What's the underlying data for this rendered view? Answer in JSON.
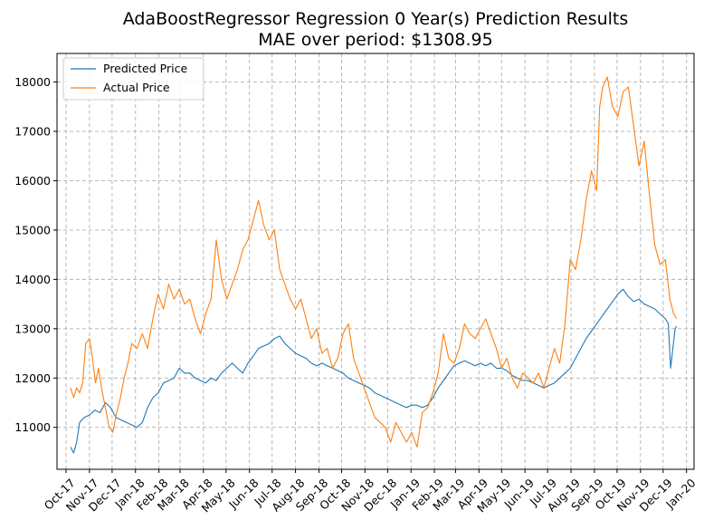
{
  "chart_data": {
    "type": "line",
    "title": "AdaBoostRegressor Regression 0 Year(s) Prediction Results",
    "subtitle": "MAE over period: $1308.95",
    "xlabel": "",
    "ylabel": "",
    "x_axis": "date",
    "xlim": [
      "2017-09-19",
      "2020-01-11"
    ],
    "ylim": [
      10150,
      18580
    ],
    "x_tick_labels": [
      "Oct-17",
      "Nov-17",
      "Dec-17",
      "Jan-18",
      "Feb-18",
      "Mar-18",
      "Apr-18",
      "May-18",
      "Jun-18",
      "Jul-18",
      "Aug-18",
      "Sep-18",
      "Oct-18",
      "Nov-18",
      "Dec-18",
      "Jan-19",
      "Feb-19",
      "Mar-19",
      "Apr-19",
      "May-19",
      "Jun-19",
      "Jul-19",
      "Aug-19",
      "Sep-19",
      "Oct-19",
      "Nov-19",
      "Dec-19",
      "Jan-20"
    ],
    "x_tick_dates": [
      "2017-10-01",
      "2017-11-01",
      "2017-12-01",
      "2018-01-01",
      "2018-02-01",
      "2018-03-01",
      "2018-04-01",
      "2018-05-01",
      "2018-06-01",
      "2018-07-01",
      "2018-08-01",
      "2018-09-01",
      "2018-10-01",
      "2018-11-01",
      "2018-12-01",
      "2019-01-01",
      "2019-02-01",
      "2019-03-01",
      "2019-04-01",
      "2019-05-01",
      "2019-06-01",
      "2019-07-01",
      "2019-08-01",
      "2019-09-01",
      "2019-10-01",
      "2019-11-01",
      "2019-12-01",
      "2020-01-01"
    ],
    "y_ticks": [
      11000,
      12000,
      13000,
      14000,
      15000,
      16000,
      17000,
      18000
    ],
    "grid": true,
    "legend_position": "top-left",
    "series": [
      {
        "name": "Predicted Price",
        "color": "#1f77b4",
        "points": [
          [
            "2017-10-07",
            10600
          ],
          [
            "2017-10-11",
            10480
          ],
          [
            "2017-10-15",
            10700
          ],
          [
            "2017-10-19",
            11100
          ],
          [
            "2017-10-25",
            11200
          ],
          [
            "2017-11-01",
            11250
          ],
          [
            "2017-11-08",
            11350
          ],
          [
            "2017-11-15",
            11300
          ],
          [
            "2017-11-22",
            11500
          ],
          [
            "2017-11-29",
            11400
          ],
          [
            "2017-12-06",
            11200
          ],
          [
            "2017-12-13",
            11150
          ],
          [
            "2017-12-20",
            11100
          ],
          [
            "2017-12-27",
            11050
          ],
          [
            "2018-01-03",
            11000
          ],
          [
            "2018-01-10",
            11100
          ],
          [
            "2018-01-17",
            11400
          ],
          [
            "2018-01-24",
            11600
          ],
          [
            "2018-01-31",
            11700
          ],
          [
            "2018-02-07",
            11900
          ],
          [
            "2018-02-14",
            11950
          ],
          [
            "2018-02-21",
            12000
          ],
          [
            "2018-02-28",
            12200
          ],
          [
            "2018-03-07",
            12100
          ],
          [
            "2018-03-14",
            12100
          ],
          [
            "2018-03-21",
            12000
          ],
          [
            "2018-03-28",
            11950
          ],
          [
            "2018-04-04",
            11900
          ],
          [
            "2018-04-11",
            12000
          ],
          [
            "2018-04-18",
            11950
          ],
          [
            "2018-04-25",
            12100
          ],
          [
            "2018-05-02",
            12200
          ],
          [
            "2018-05-09",
            12300
          ],
          [
            "2018-05-16",
            12200
          ],
          [
            "2018-05-23",
            12100
          ],
          [
            "2018-05-30",
            12300
          ],
          [
            "2018-06-06",
            12450
          ],
          [
            "2018-06-13",
            12600
          ],
          [
            "2018-06-20",
            12650
          ],
          [
            "2018-06-27",
            12700
          ],
          [
            "2018-07-04",
            12800
          ],
          [
            "2018-07-11",
            12850
          ],
          [
            "2018-07-18",
            12700
          ],
          [
            "2018-07-25",
            12600
          ],
          [
            "2018-08-01",
            12500
          ],
          [
            "2018-08-08",
            12450
          ],
          [
            "2018-08-15",
            12400
          ],
          [
            "2018-08-22",
            12300
          ],
          [
            "2018-08-29",
            12250
          ],
          [
            "2018-09-05",
            12300
          ],
          [
            "2018-09-12",
            12250
          ],
          [
            "2018-09-19",
            12200
          ],
          [
            "2018-09-26",
            12150
          ],
          [
            "2018-10-03",
            12100
          ],
          [
            "2018-10-10",
            12000
          ],
          [
            "2018-10-17",
            11950
          ],
          [
            "2018-10-24",
            11900
          ],
          [
            "2018-10-31",
            11850
          ],
          [
            "2018-11-07",
            11800
          ],
          [
            "2018-11-14",
            11700
          ],
          [
            "2018-11-21",
            11650
          ],
          [
            "2018-11-28",
            11600
          ],
          [
            "2018-12-05",
            11550
          ],
          [
            "2018-12-12",
            11500
          ],
          [
            "2018-12-19",
            11450
          ],
          [
            "2018-12-26",
            11400
          ],
          [
            "2019-01-02",
            11450
          ],
          [
            "2019-01-09",
            11450
          ],
          [
            "2019-01-16",
            11400
          ],
          [
            "2019-01-23",
            11450
          ],
          [
            "2019-01-30",
            11600
          ],
          [
            "2019-02-06",
            11800
          ],
          [
            "2019-02-13",
            11950
          ],
          [
            "2019-02-20",
            12100
          ],
          [
            "2019-02-27",
            12250
          ],
          [
            "2019-03-06",
            12300
          ],
          [
            "2019-03-13",
            12350
          ],
          [
            "2019-03-20",
            12300
          ],
          [
            "2019-03-27",
            12250
          ],
          [
            "2019-04-03",
            12300
          ],
          [
            "2019-04-10",
            12250
          ],
          [
            "2019-04-17",
            12300
          ],
          [
            "2019-04-24",
            12200
          ],
          [
            "2019-05-01",
            12200
          ],
          [
            "2019-05-08",
            12150
          ],
          [
            "2019-05-15",
            12050
          ],
          [
            "2019-05-22",
            12000
          ],
          [
            "2019-05-29",
            11950
          ],
          [
            "2019-06-05",
            11950
          ],
          [
            "2019-06-12",
            11900
          ],
          [
            "2019-06-19",
            11850
          ],
          [
            "2019-06-26",
            11800
          ],
          [
            "2019-07-03",
            11850
          ],
          [
            "2019-07-10",
            11900
          ],
          [
            "2019-07-17",
            12000
          ],
          [
            "2019-07-24",
            12100
          ],
          [
            "2019-07-31",
            12200
          ],
          [
            "2019-08-07",
            12400
          ],
          [
            "2019-08-14",
            12600
          ],
          [
            "2019-08-21",
            12800
          ],
          [
            "2019-08-28",
            12950
          ],
          [
            "2019-09-04",
            13100
          ],
          [
            "2019-09-11",
            13250
          ],
          [
            "2019-09-18",
            13400
          ],
          [
            "2019-09-25",
            13550
          ],
          [
            "2019-10-02",
            13700
          ],
          [
            "2019-10-09",
            13800
          ],
          [
            "2019-10-16",
            13650
          ],
          [
            "2019-10-23",
            13550
          ],
          [
            "2019-10-30",
            13600
          ],
          [
            "2019-11-06",
            13500
          ],
          [
            "2019-11-13",
            13450
          ],
          [
            "2019-11-20",
            13400
          ],
          [
            "2019-11-27",
            13300
          ],
          [
            "2019-12-04",
            13200
          ],
          [
            "2019-12-08",
            13100
          ],
          [
            "2019-12-11",
            12200
          ],
          [
            "2019-12-14",
            12600
          ],
          [
            "2019-12-17",
            13000
          ],
          [
            "2019-12-19",
            13050
          ]
        ]
      },
      {
        "name": "Actual Price",
        "color": "#ff7f0e",
        "points": [
          [
            "2017-10-07",
            11800
          ],
          [
            "2017-10-11",
            11600
          ],
          [
            "2017-10-15",
            11800
          ],
          [
            "2017-10-19",
            11700
          ],
          [
            "2017-10-23",
            11900
          ],
          [
            "2017-10-27",
            12700
          ],
          [
            "2017-11-01",
            12800
          ],
          [
            "2017-11-05",
            12400
          ],
          [
            "2017-11-09",
            11900
          ],
          [
            "2017-11-13",
            12200
          ],
          [
            "2017-11-17",
            11800
          ],
          [
            "2017-11-22",
            11400
          ],
          [
            "2017-11-27",
            11000
          ],
          [
            "2017-12-02",
            10900
          ],
          [
            "2017-12-07",
            11300
          ],
          [
            "2017-12-12",
            11600
          ],
          [
            "2017-12-17",
            12000
          ],
          [
            "2017-12-22",
            12300
          ],
          [
            "2017-12-27",
            12700
          ],
          [
            "2018-01-03",
            12600
          ],
          [
            "2018-01-10",
            12900
          ],
          [
            "2018-01-17",
            12600
          ],
          [
            "2018-01-24",
            13200
          ],
          [
            "2018-01-31",
            13700
          ],
          [
            "2018-02-07",
            13400
          ],
          [
            "2018-02-14",
            13900
          ],
          [
            "2018-02-21",
            13600
          ],
          [
            "2018-02-28",
            13800
          ],
          [
            "2018-03-07",
            13500
          ],
          [
            "2018-03-14",
            13600
          ],
          [
            "2018-03-21",
            13200
          ],
          [
            "2018-03-28",
            12900
          ],
          [
            "2018-04-04",
            13300
          ],
          [
            "2018-04-11",
            13600
          ],
          [
            "2018-04-18",
            14800
          ],
          [
            "2018-04-25",
            14000
          ],
          [
            "2018-05-02",
            13600
          ],
          [
            "2018-05-09",
            13900
          ],
          [
            "2018-05-16",
            14200
          ],
          [
            "2018-05-23",
            14600
          ],
          [
            "2018-05-30",
            14800
          ],
          [
            "2018-06-06",
            15200
          ],
          [
            "2018-06-13",
            15600
          ],
          [
            "2018-06-20",
            15100
          ],
          [
            "2018-06-27",
            14800
          ],
          [
            "2018-07-04",
            15000
          ],
          [
            "2018-07-11",
            14200
          ],
          [
            "2018-07-18",
            13900
          ],
          [
            "2018-07-25",
            13600
          ],
          [
            "2018-08-01",
            13400
          ],
          [
            "2018-08-08",
            13600
          ],
          [
            "2018-08-15",
            13200
          ],
          [
            "2018-08-22",
            12800
          ],
          [
            "2018-08-29",
            13000
          ],
          [
            "2018-09-05",
            12500
          ],
          [
            "2018-09-12",
            12600
          ],
          [
            "2018-09-19",
            12200
          ],
          [
            "2018-09-26",
            12400
          ],
          [
            "2018-10-03",
            12900
          ],
          [
            "2018-10-10",
            13100
          ],
          [
            "2018-10-17",
            12400
          ],
          [
            "2018-10-24",
            12100
          ],
          [
            "2018-10-31",
            11800
          ],
          [
            "2018-11-07",
            11500
          ],
          [
            "2018-11-14",
            11200
          ],
          [
            "2018-11-21",
            11100
          ],
          [
            "2018-11-28",
            11000
          ],
          [
            "2018-12-05",
            10700
          ],
          [
            "2018-12-12",
            11100
          ],
          [
            "2018-12-19",
            10900
          ],
          [
            "2018-12-26",
            10700
          ],
          [
            "2019-01-02",
            10900
          ],
          [
            "2019-01-09",
            10600
          ],
          [
            "2019-01-16",
            11300
          ],
          [
            "2019-01-23",
            11400
          ],
          [
            "2019-01-30",
            11700
          ],
          [
            "2019-02-06",
            12100
          ],
          [
            "2019-02-13",
            12900
          ],
          [
            "2019-02-20",
            12400
          ],
          [
            "2019-02-27",
            12300
          ],
          [
            "2019-03-06",
            12600
          ],
          [
            "2019-03-13",
            13100
          ],
          [
            "2019-03-20",
            12900
          ],
          [
            "2019-03-27",
            12800
          ],
          [
            "2019-04-03",
            13000
          ],
          [
            "2019-04-10",
            13200
          ],
          [
            "2019-04-17",
            12900
          ],
          [
            "2019-04-24",
            12600
          ],
          [
            "2019-05-01",
            12200
          ],
          [
            "2019-05-08",
            12400
          ],
          [
            "2019-05-15",
            12000
          ],
          [
            "2019-05-22",
            11800
          ],
          [
            "2019-05-29",
            12100
          ],
          [
            "2019-06-05",
            12000
          ],
          [
            "2019-06-12",
            11900
          ],
          [
            "2019-06-19",
            12100
          ],
          [
            "2019-06-26",
            11800
          ],
          [
            "2019-07-03",
            12200
          ],
          [
            "2019-07-10",
            12600
          ],
          [
            "2019-07-17",
            12300
          ],
          [
            "2019-07-24",
            13100
          ],
          [
            "2019-07-31",
            14400
          ],
          [
            "2019-08-07",
            14200
          ],
          [
            "2019-08-14",
            14800
          ],
          [
            "2019-08-21",
            15600
          ],
          [
            "2019-08-28",
            16200
          ],
          [
            "2019-09-04",
            15800
          ],
          [
            "2019-09-08",
            17500
          ],
          [
            "2019-09-12",
            17900
          ],
          [
            "2019-09-18",
            18100
          ],
          [
            "2019-09-25",
            17500
          ],
          [
            "2019-10-02",
            17300
          ],
          [
            "2019-10-09",
            17800
          ],
          [
            "2019-10-16",
            17900
          ],
          [
            "2019-10-23",
            17100
          ],
          [
            "2019-10-30",
            16300
          ],
          [
            "2019-11-06",
            16800
          ],
          [
            "2019-11-13",
            15700
          ],
          [
            "2019-11-20",
            14700
          ],
          [
            "2019-11-27",
            14300
          ],
          [
            "2019-12-04",
            14400
          ],
          [
            "2019-12-10",
            13600
          ],
          [
            "2019-12-15",
            13300
          ],
          [
            "2019-12-19",
            13200
          ]
        ]
      }
    ]
  }
}
